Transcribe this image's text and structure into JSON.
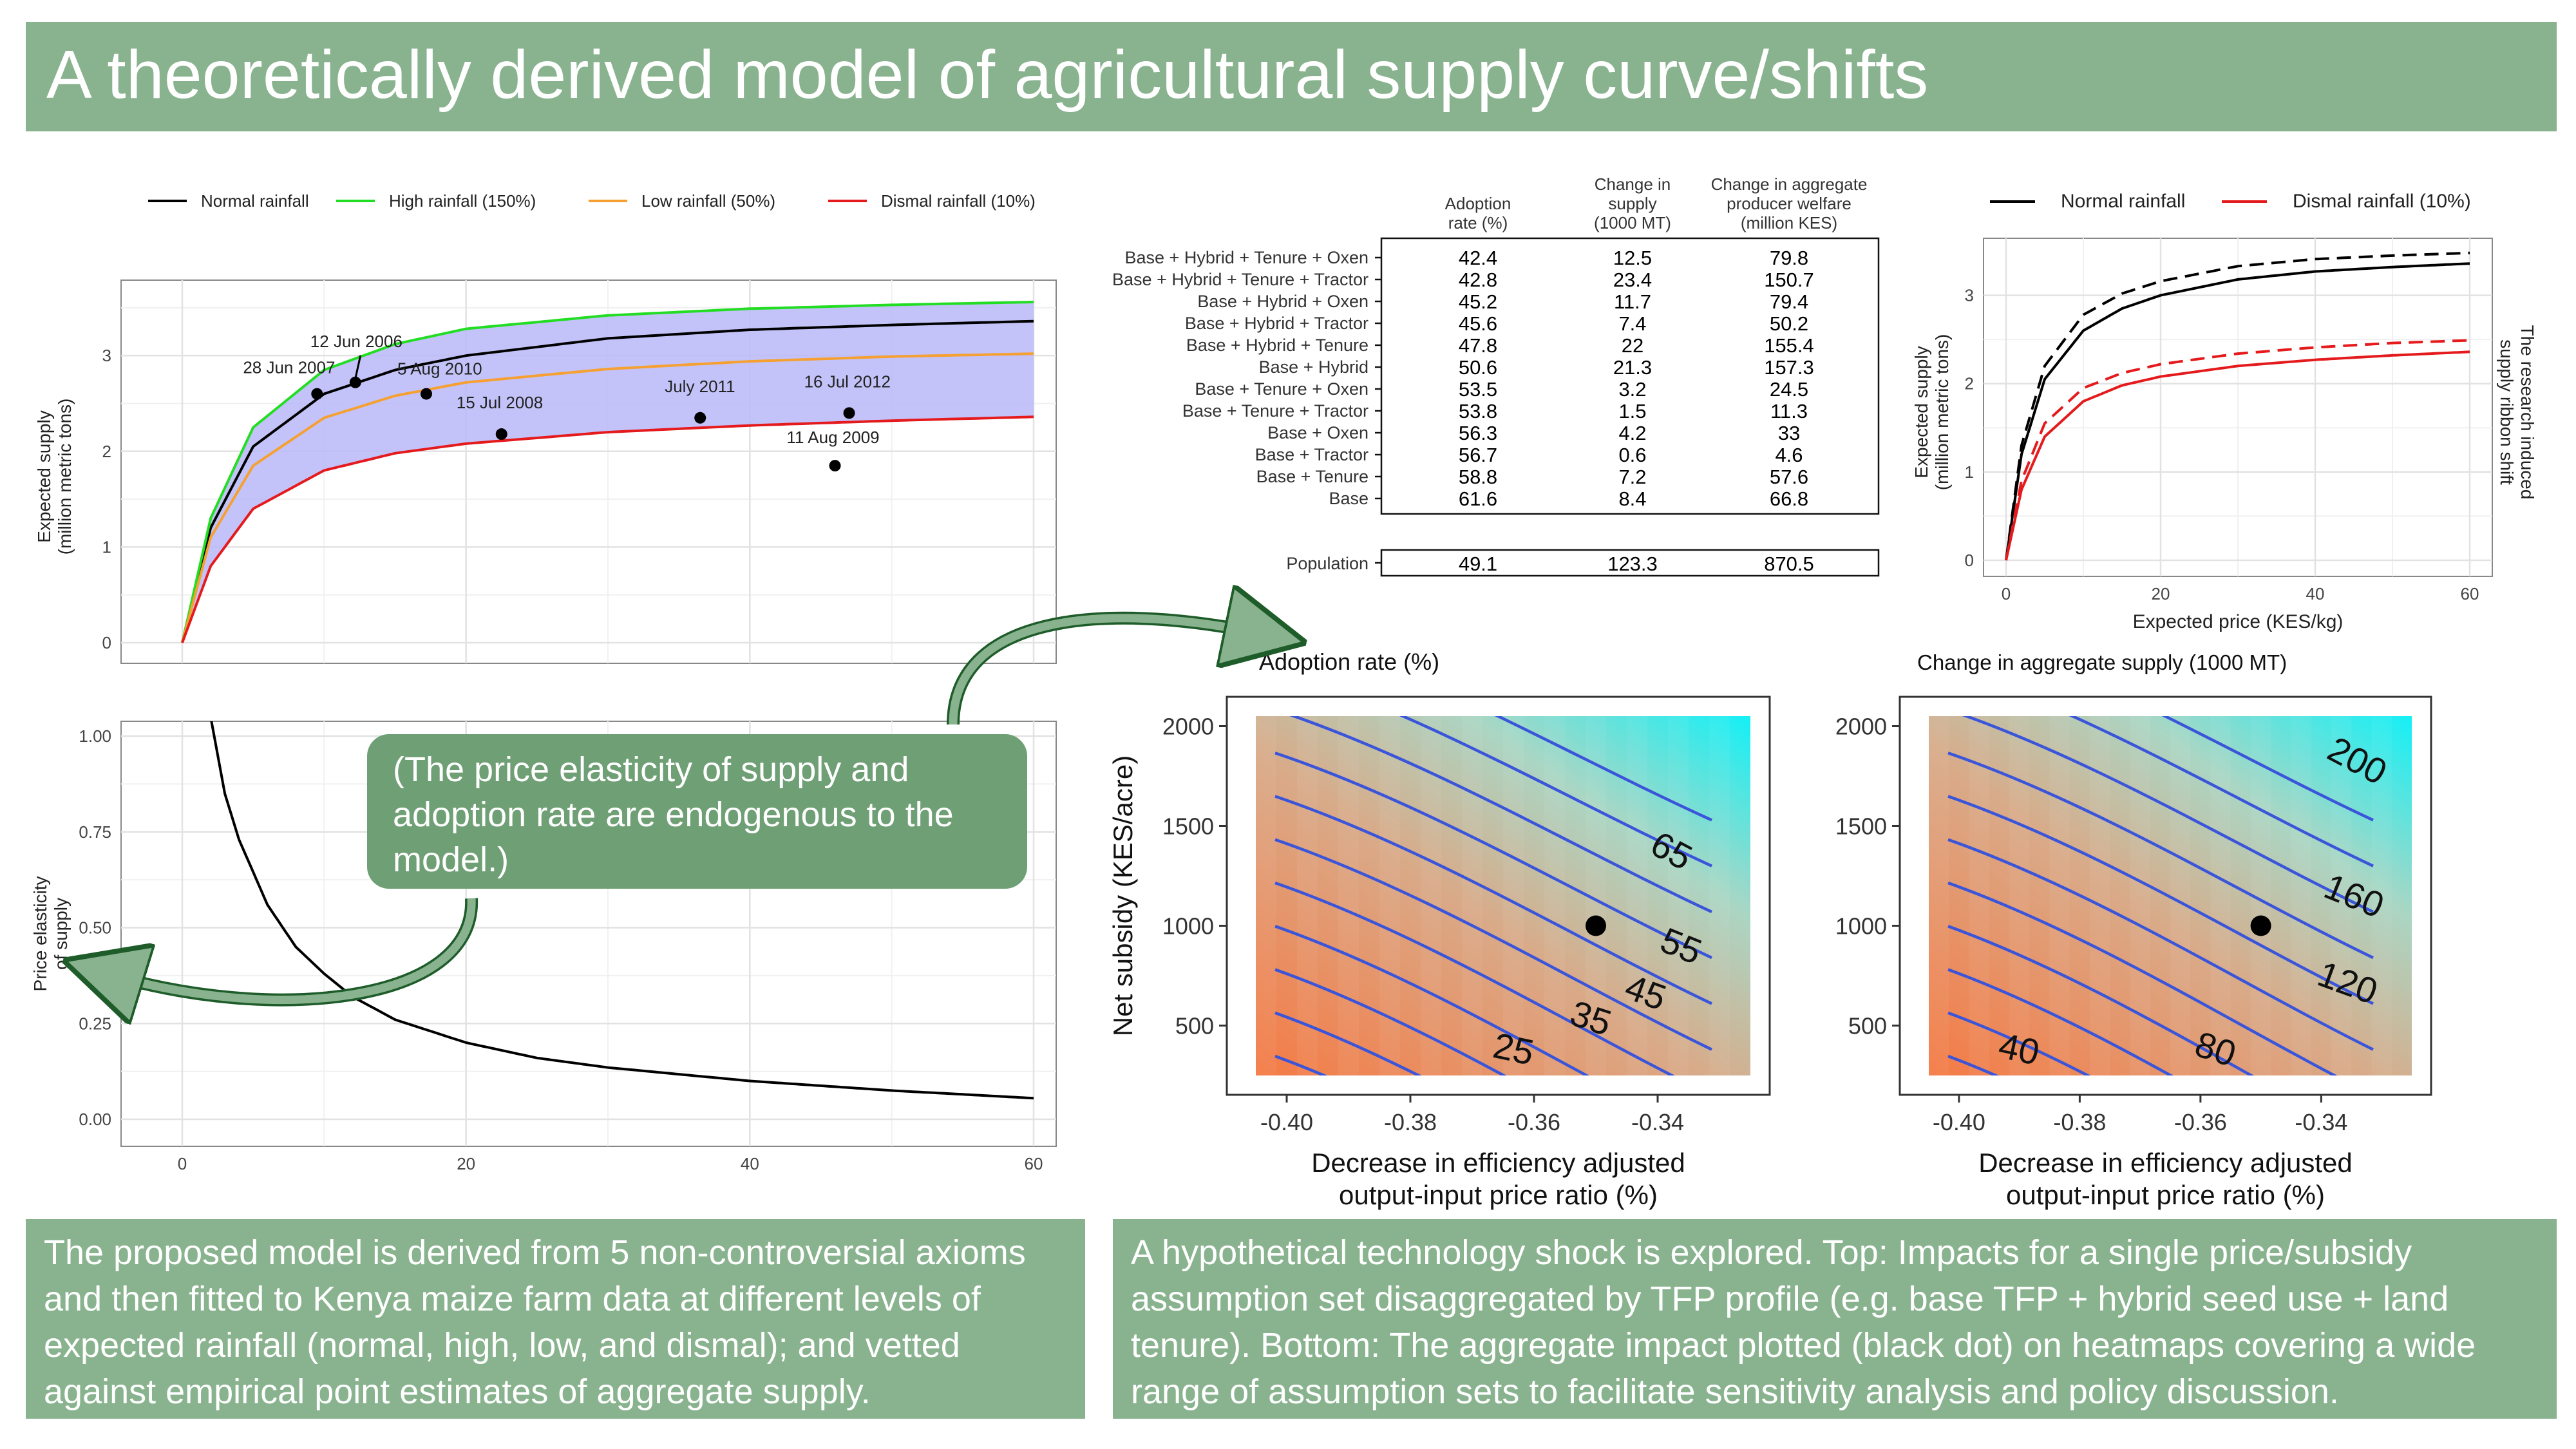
{
  "title": "A theoretically derived model of agricultural supply curve/shifts",
  "colors": {
    "normal": "#000000",
    "high": "#22dd22",
    "low": "#f5a030",
    "dismal": "#e41a1c",
    "ribbon": "#b9b9f8",
    "green": "#88b38e",
    "contour": "#3a55d9"
  },
  "chart_data": [
    {
      "id": "supply_curves",
      "type": "line",
      "legend": [
        "Normal rainfall",
        "High rainfall (150%)",
        "Low rainfall (50%)",
        "Dismal rainfall (10%)"
      ],
      "xlabel": "Expected price (KES/kg)",
      "ylabel": "Expected supply\n(million metric tons)",
      "xlim": [
        0,
        60
      ],
      "ylim": [
        0,
        3.6
      ],
      "xticks": [
        0,
        20,
        40,
        60
      ],
      "yticks": [
        0,
        1,
        2,
        3
      ],
      "series": [
        {
          "name": "Normal rainfall",
          "x": [
            0,
            2,
            5,
            10,
            15,
            20,
            30,
            40,
            50,
            60
          ],
          "y": [
            0,
            1.2,
            2.05,
            2.6,
            2.85,
            3.0,
            3.18,
            3.27,
            3.32,
            3.36
          ]
        },
        {
          "name": "High rainfall (150%)",
          "x": [
            0,
            2,
            5,
            10,
            15,
            20,
            30,
            40,
            50,
            60
          ],
          "y": [
            0,
            1.3,
            2.25,
            2.85,
            3.12,
            3.28,
            3.42,
            3.49,
            3.53,
            3.56
          ]
        },
        {
          "name": "Low rainfall (50%)",
          "x": [
            0,
            2,
            5,
            10,
            15,
            20,
            30,
            40,
            50,
            60
          ],
          "y": [
            0,
            1.1,
            1.85,
            2.35,
            2.58,
            2.72,
            2.86,
            2.94,
            2.99,
            3.02
          ]
        },
        {
          "name": "Dismal rainfall (10%)",
          "x": [
            0,
            2,
            5,
            10,
            15,
            20,
            30,
            40,
            50,
            60
          ],
          "y": [
            0,
            0.8,
            1.4,
            1.8,
            1.98,
            2.08,
            2.2,
            2.27,
            2.32,
            2.36
          ]
        }
      ],
      "points": [
        {
          "label": "12 Jun 2006",
          "x": 12.2,
          "y": 2.72
        },
        {
          "label": "28 Jun 2007",
          "x": 9.5,
          "y": 2.6
        },
        {
          "label": "5 Aug 2010",
          "x": 17.2,
          "y": 2.6
        },
        {
          "label": "15 Jul 2008",
          "x": 22.5,
          "y": 2.18
        },
        {
          "label": "July 2011",
          "x": 36.5,
          "y": 2.35
        },
        {
          "label": "16 Jul 2012",
          "x": 47,
          "y": 2.4
        },
        {
          "label": "11 Aug 2009",
          "x": 46,
          "y": 1.85
        }
      ]
    },
    {
      "id": "elasticity",
      "type": "line",
      "xlabel": "Expected price (KES/kg)",
      "ylabel": "Price elasticity\nof supply",
      "xlim": [
        0,
        60
      ],
      "ylim": [
        0,
        1.0
      ],
      "xticks": [
        0,
        20,
        40,
        60
      ],
      "yticks": [
        0.0,
        0.25,
        0.5,
        0.75,
        1.0
      ],
      "series": [
        {
          "name": "",
          "x": [
            2,
            3,
            4,
            6,
            8,
            10,
            12,
            15,
            20,
            25,
            30,
            40,
            50,
            60
          ],
          "y": [
            1.05,
            0.85,
            0.73,
            0.56,
            0.45,
            0.38,
            0.32,
            0.26,
            0.2,
            0.16,
            0.135,
            0.1,
            0.075,
            0.055
          ]
        }
      ]
    },
    {
      "id": "tfp_table",
      "type": "table",
      "columns": [
        "Adoption\nrate (%)",
        "Change in\nsupply\n(1000 MT)",
        "Change in aggregate\nproducer welfare\n(million KES)"
      ],
      "rows": [
        {
          "label": "Base + Hybrid + Tenure + Oxen",
          "values": [
            "42.4",
            "12.5",
            "79.8"
          ]
        },
        {
          "label": "Base + Hybrid + Tenure + Tractor",
          "values": [
            "42.8",
            "23.4",
            "150.7"
          ]
        },
        {
          "label": "Base + Hybrid + Oxen",
          "values": [
            "45.2",
            "11.7",
            "79.4"
          ]
        },
        {
          "label": "Base + Hybrid + Tractor",
          "values": [
            "45.6",
            "7.4",
            "50.2"
          ]
        },
        {
          "label": "Base + Hybrid + Tenure",
          "values": [
            "47.8",
            "22",
            "155.4"
          ]
        },
        {
          "label": "Base + Hybrid",
          "values": [
            "50.6",
            "21.3",
            "157.3"
          ]
        },
        {
          "label": "Base + Tenure + Oxen",
          "values": [
            "53.5",
            "3.2",
            "24.5"
          ]
        },
        {
          "label": "Base + Tenure + Tractor",
          "values": [
            "53.8",
            "1.5",
            "11.3"
          ]
        },
        {
          "label": "Base + Oxen",
          "values": [
            "56.3",
            "4.2",
            "33"
          ]
        },
        {
          "label": "Base + Tractor",
          "values": [
            "56.7",
            "0.6",
            "4.6"
          ]
        },
        {
          "label": "Base + Tenure",
          "values": [
            "58.8",
            "7.2",
            "57.6"
          ]
        },
        {
          "label": "Base",
          "values": [
            "61.6",
            "8.4",
            "66.8"
          ]
        }
      ],
      "population": {
        "label": "Population",
        "values": [
          "49.1",
          "123.3",
          "870.5"
        ]
      }
    },
    {
      "id": "ribbon_shift",
      "type": "line",
      "legend": [
        "Normal rainfall",
        "Dismal rainfall (10%)"
      ],
      "xlabel": "Expected price (KES/kg)",
      "ylabel": "Expected supply\n(million metric tons)",
      "right_label": "The research induced\nsupply ribbon shift",
      "xlim": [
        0,
        60
      ],
      "ylim": [
        0,
        3.5
      ],
      "xticks": [
        0,
        20,
        40,
        60
      ],
      "yticks": [
        0,
        1,
        2,
        3
      ],
      "series": [
        {
          "name": "Normal rainfall",
          "style": "solid",
          "x": [
            0,
            2,
            5,
            10,
            15,
            20,
            30,
            40,
            50,
            60
          ],
          "y": [
            0,
            1.2,
            2.05,
            2.6,
            2.85,
            3.0,
            3.18,
            3.27,
            3.32,
            3.36
          ]
        },
        {
          "name": "Normal rainfall",
          "style": "dashed",
          "x": [
            0,
            2,
            5,
            10,
            15,
            20,
            30,
            40,
            50,
            60
          ],
          "y": [
            0,
            1.3,
            2.2,
            2.78,
            3.02,
            3.16,
            3.33,
            3.41,
            3.45,
            3.48
          ]
        },
        {
          "name": "Dismal rainfall (10%)",
          "style": "solid",
          "x": [
            0,
            2,
            5,
            10,
            15,
            20,
            30,
            40,
            50,
            60
          ],
          "y": [
            0,
            0.8,
            1.4,
            1.8,
            1.98,
            2.08,
            2.2,
            2.27,
            2.32,
            2.36
          ]
        },
        {
          "name": "Dismal rainfall (10%)",
          "style": "dashed",
          "x": [
            0,
            2,
            5,
            10,
            15,
            20,
            30,
            40,
            50,
            60
          ],
          "y": [
            0,
            0.9,
            1.55,
            1.95,
            2.12,
            2.22,
            2.34,
            2.41,
            2.46,
            2.49
          ]
        }
      ]
    },
    {
      "id": "heatmap_adoption",
      "type": "heatmap",
      "title": "Adoption rate (%)",
      "xlabel": "Decrease in efficiency adjusted\noutput-input price ratio (%)",
      "ylabel": "Net subsidy (KES/acre)",
      "xlim": [
        -0.405,
        -0.325
      ],
      "ylim": [
        250,
        2050
      ],
      "xticks": [
        -0.4,
        -0.38,
        -0.36,
        -0.34
      ],
      "yticks": [
        500,
        1000,
        1500,
        2000
      ],
      "contour_labels": [
        "25",
        "35",
        "45",
        "55",
        "65"
      ],
      "point": {
        "x": -0.35,
        "y": 1000
      }
    },
    {
      "id": "heatmap_supply",
      "type": "heatmap",
      "title": "Change in aggregate supply (1000 MT)",
      "xlabel": "Decrease in efficiency adjusted\noutput-input price ratio (%)",
      "ylabel": "",
      "xlim": [
        -0.405,
        -0.325
      ],
      "ylim": [
        250,
        2050
      ],
      "xticks": [
        -0.4,
        -0.38,
        -0.36,
        -0.34
      ],
      "yticks": [
        500,
        1000,
        1500,
        2000
      ],
      "contour_labels": [
        "40",
        "80",
        "120",
        "160",
        "200"
      ],
      "point": {
        "x": -0.35,
        "y": 1000
      }
    }
  ],
  "callout": "(The price elasticity of supply and adoption rate are endogenous to the model.)",
  "note_left": "The proposed model is derived from 5 non-controversial axioms and then fitted to Kenya maize farm data at different levels of expected rainfall (normal, high, low, and dismal); and vetted against empirical point estimates of aggregate supply.",
  "note_right": "A hypothetical technology shock is explored. Top: Impacts for a single price/subsidy assumption set disaggregated by TFP profile (e.g. base TFP + hybrid seed use + land tenure). Bottom: The aggregate impact plotted (black dot) on heatmaps covering a wide range of assumption sets to facilitate sensitivity analysis and policy discussion."
}
